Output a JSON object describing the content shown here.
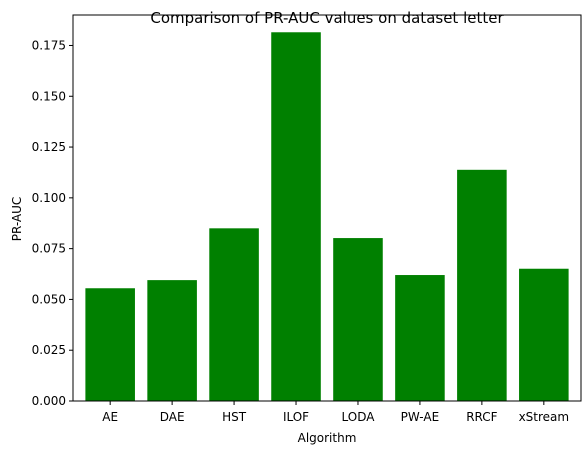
{
  "chart_data": {
    "type": "bar",
    "title": "Comparison of PR-AUC values on dataset letter",
    "xlabel": "Algorithm",
    "ylabel": "PR-AUC",
    "categories": [
      "AE",
      "DAE",
      "HST",
      "ILOF",
      "LODA",
      "PW-AE",
      "RRCF",
      "xStream"
    ],
    "values": [
      0.0555,
      0.0595,
      0.085,
      0.1815,
      0.0802,
      0.062,
      0.1138,
      0.0651
    ],
    "ylim": [
      0,
      0.19
    ],
    "yticks": [
      0.0,
      0.025,
      0.05,
      0.075,
      0.1,
      0.125,
      0.15,
      0.175
    ],
    "ytick_labels": [
      "0.000",
      "0.025",
      "0.050",
      "0.075",
      "0.100",
      "0.125",
      "0.150",
      "0.175"
    ],
    "bar_color": "#008000",
    "grid": false,
    "legend": "none"
  }
}
